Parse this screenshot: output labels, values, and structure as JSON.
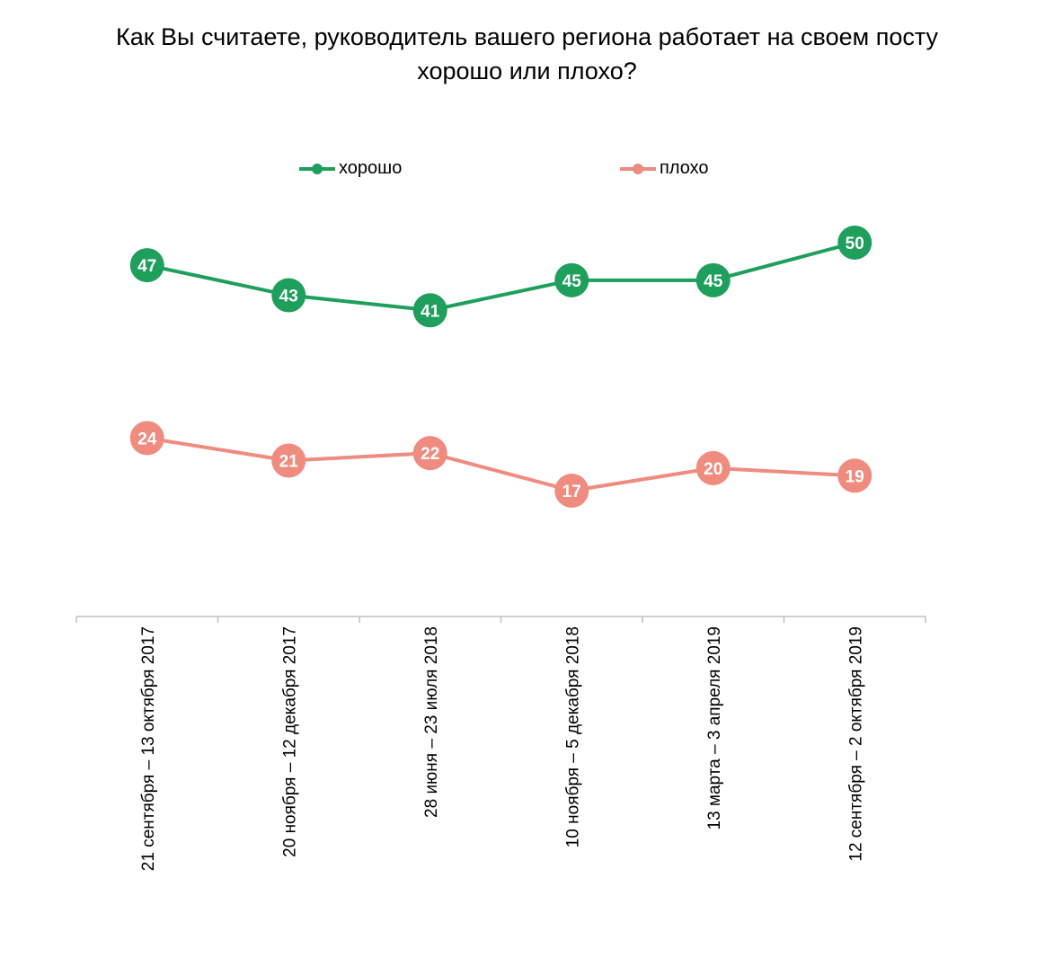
{
  "title": {
    "line1": "Как Вы считаете, руководитель  вашего региона работает на своем посту",
    "line2": "хорошо или плохо?"
  },
  "colors": {
    "good": "#1e9f5c",
    "bad": "#ef8b7f",
    "axis": "#bfbfbf"
  },
  "legend": [
    {
      "label": "хорошо",
      "color": "#1e9f5c"
    },
    {
      "label": "плохо",
      "color": "#ef8b7f"
    }
  ],
  "chart_data": {
    "type": "line",
    "categories": [
      "21 сентября – 13 октября 2017",
      "20 ноября – 12 декабря 2017",
      "28 июня – 23 июля 2018",
      "10 ноября – 5 декабря 2018",
      "13 марта – 3 апреля 2019",
      "12 сентября – 2 октября 2019"
    ],
    "series": [
      {
        "name": "хорошо",
        "values": [
          47,
          43,
          41,
          45,
          45,
          50
        ]
      },
      {
        "name": "плохо",
        "values": [
          24,
          21,
          22,
          17,
          20,
          19
        ]
      }
    ],
    "grid": false,
    "legend_position": "top"
  }
}
